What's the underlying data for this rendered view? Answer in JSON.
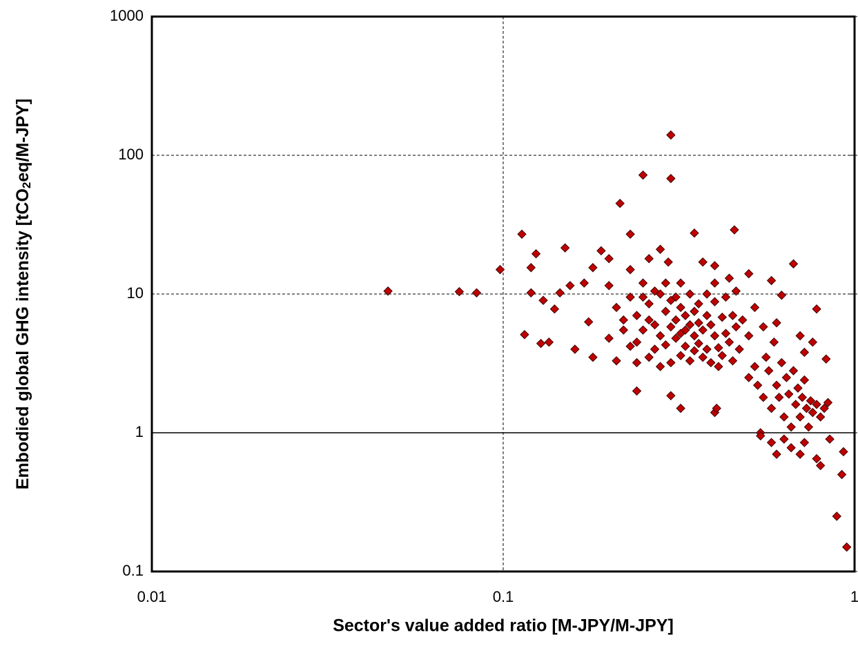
{
  "chart_data": {
    "type": "scatter",
    "xlabel": "Sector's value added ratio [M-JPY/M-JPY]",
    "ylabel": {
      "before": "Embodied global GHG intensity [tCO",
      "sub": "2",
      "after": "eq/M-JPY]"
    },
    "xscale": "log",
    "yscale": "log",
    "xlim": [
      0.01,
      1
    ],
    "ylim": [
      0.1,
      1000
    ],
    "xticks": [
      0.01,
      0.1,
      1
    ],
    "yticks": [
      0.1,
      1,
      10,
      100,
      1000
    ],
    "grid": true,
    "x_axis_line_at": 1,
    "color": "#c00000",
    "edgecolor": "#3a0000",
    "x": [
      0.047,
      0.075,
      0.084,
      0.098,
      0.113,
      0.115,
      0.12,
      0.124,
      0.12,
      0.15,
      0.13,
      0.135,
      0.128,
      0.14,
      0.145,
      0.155,
      0.16,
      0.17,
      0.175,
      0.18,
      0.18,
      0.19,
      0.2,
      0.215,
      0.23,
      0.25,
      0.3,
      0.3,
      0.28,
      0.26,
      0.295,
      0.32,
      0.35,
      0.455,
      0.4,
      0.37,
      0.5,
      0.58,
      0.62,
      0.67,
      0.24,
      0.3,
      0.32,
      0.4,
      0.405,
      0.54,
      0.54,
      0.58,
      0.6,
      0.63,
      0.66,
      0.7,
      0.72,
      0.78,
      0.8,
      0.85,
      0.92,
      0.93,
      0.89,
      0.95,
      0.78,
      0.83,
      0.76,
      0.7,
      0.72,
      0.2,
      0.21,
      0.22,
      0.2,
      0.21,
      0.23,
      0.23,
      0.24,
      0.24,
      0.25,
      0.25,
      0.26,
      0.26,
      0.27,
      0.27,
      0.28,
      0.28,
      0.28,
      0.29,
      0.29,
      0.3,
      0.3,
      0.3,
      0.31,
      0.31,
      0.32,
      0.32,
      0.32,
      0.33,
      0.33,
      0.34,
      0.34,
      0.34,
      0.35,
      0.35,
      0.36,
      0.36,
      0.36,
      0.37,
      0.37,
      0.38,
      0.38,
      0.38,
      0.39,
      0.39,
      0.4,
      0.4,
      0.4,
      0.41,
      0.41,
      0.42,
      0.42,
      0.43,
      0.43,
      0.44,
      0.44,
      0.45,
      0.45,
      0.46,
      0.46,
      0.47,
      0.48,
      0.5,
      0.5,
      0.52,
      0.52,
      0.53,
      0.55,
      0.55,
      0.56,
      0.57,
      0.58,
      0.59,
      0.6,
      0.6,
      0.61,
      0.62,
      0.63,
      0.64,
      0.65,
      0.66,
      0.67,
      0.68,
      0.69,
      0.7,
      0.71,
      0.72,
      0.73,
      0.74,
      0.75,
      0.76,
      0.78,
      0.8,
      0.82,
      0.84,
      0.22,
      0.23,
      0.24,
      0.25,
      0.26,
      0.27,
      0.29,
      0.31,
      0.33,
      0.35
    ],
    "values": [
      10.5,
      10.4,
      10.2,
      15,
      27,
      5.1,
      15.5,
      19.5,
      10.2,
      21.5,
      9,
      4.5,
      4.4,
      7.8,
      10.2,
      11.5,
      4,
      12,
      6.3,
      15.5,
      3.5,
      20.5,
      18,
      45,
      27,
      72,
      68,
      140,
      21,
      18,
      17,
      12,
      27.5,
      29,
      16,
      17,
      14,
      12.5,
      9.8,
      16.5,
      2,
      1.85,
      1.5,
      1.4,
      1.5,
      1,
      0.95,
      0.85,
      0.7,
      0.9,
      0.78,
      0.7,
      0.85,
      0.65,
      0.58,
      0.9,
      0.5,
      0.73,
      0.25,
      0.15,
      7.8,
      3.4,
      4.5,
      5,
      3.8,
      11.5,
      8,
      6.5,
      4.8,
      3.3,
      15,
      9.5,
      7,
      4.5,
      5.5,
      12,
      8.5,
      3.5,
      6,
      4,
      10,
      5,
      3,
      7.5,
      4.3,
      9,
      5.8,
      3.2,
      6.5,
      4.8,
      8,
      5.2,
      3.6,
      7,
      4.2,
      10,
      6,
      3.3,
      5,
      3.9,
      8.5,
      6.2,
      4.4,
      5.5,
      3.5,
      10,
      7,
      4,
      6,
      3.2,
      12,
      8.8,
      5,
      4.1,
      3,
      6.8,
      3.6,
      9.5,
      5.2,
      13,
      4.5,
      7,
      3.3,
      5.8,
      10.5,
      4,
      6.5,
      5,
      2.5,
      3,
      8,
      2.2,
      5.8,
      1.8,
      3.5,
      2.8,
      1.5,
      4.5,
      2.2,
      6.2,
      1.8,
      3.2,
      1.3,
      2.5,
      1.9,
      1.1,
      2.8,
      1.6,
      2.1,
      1.3,
      1.8,
      2.4,
      1.5,
      1.1,
      1.7,
      1.4,
      1.6,
      1.3,
      1.5,
      1.65,
      5.5,
      4.2,
      3.2,
      9.5,
      6.5,
      10.5,
      12,
      9.5,
      5.5,
      7.5
    ]
  }
}
